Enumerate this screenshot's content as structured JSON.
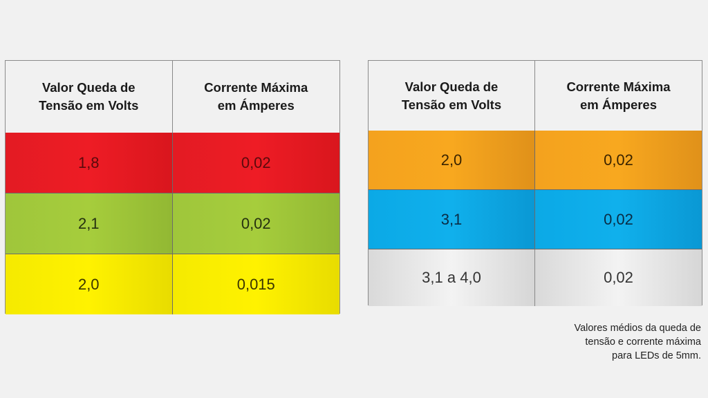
{
  "tables": [
    {
      "headers": [
        "Valor Queda de Tensão em Volts",
        "Corrente Máxima em Ámperes"
      ],
      "header_lines": [
        [
          "Valor Queda de",
          "Tensão em Volts"
        ],
        [
          "Corrente Máxima",
          "em Ámperes"
        ]
      ],
      "rows": [
        {
          "color": "#ee1c25",
          "voltage": "1,8",
          "current": "0,02"
        },
        {
          "color": "#a6cd3c",
          "voltage": "2,1",
          "current": "0,02"
        },
        {
          "color": "#fff200",
          "voltage": "2,0",
          "current": "0,015"
        }
      ]
    },
    {
      "headers": [
        "Valor Queda de Tensão em Volts",
        "Corrente Máxima em Ámperes"
      ],
      "header_lines": [
        [
          "Valor Queda de",
          "Tensão em Volts"
        ],
        [
          "Corrente Máxima",
          "em Ámperes"
        ]
      ],
      "rows": [
        {
          "color": "#f8a81f",
          "voltage": "2,0",
          "current": "0,02"
        },
        {
          "color": "#10b0ec",
          "voltage": "3,1",
          "current": "0,02"
        },
        {
          "color": "#f3f3f3",
          "voltage": "3,1 a 4,0",
          "current": "0,02"
        }
      ]
    }
  ],
  "caption": {
    "lines": [
      "Valores médios da queda de",
      "tensão e corrente máxima",
      "para LEDs de 5mm."
    ]
  }
}
